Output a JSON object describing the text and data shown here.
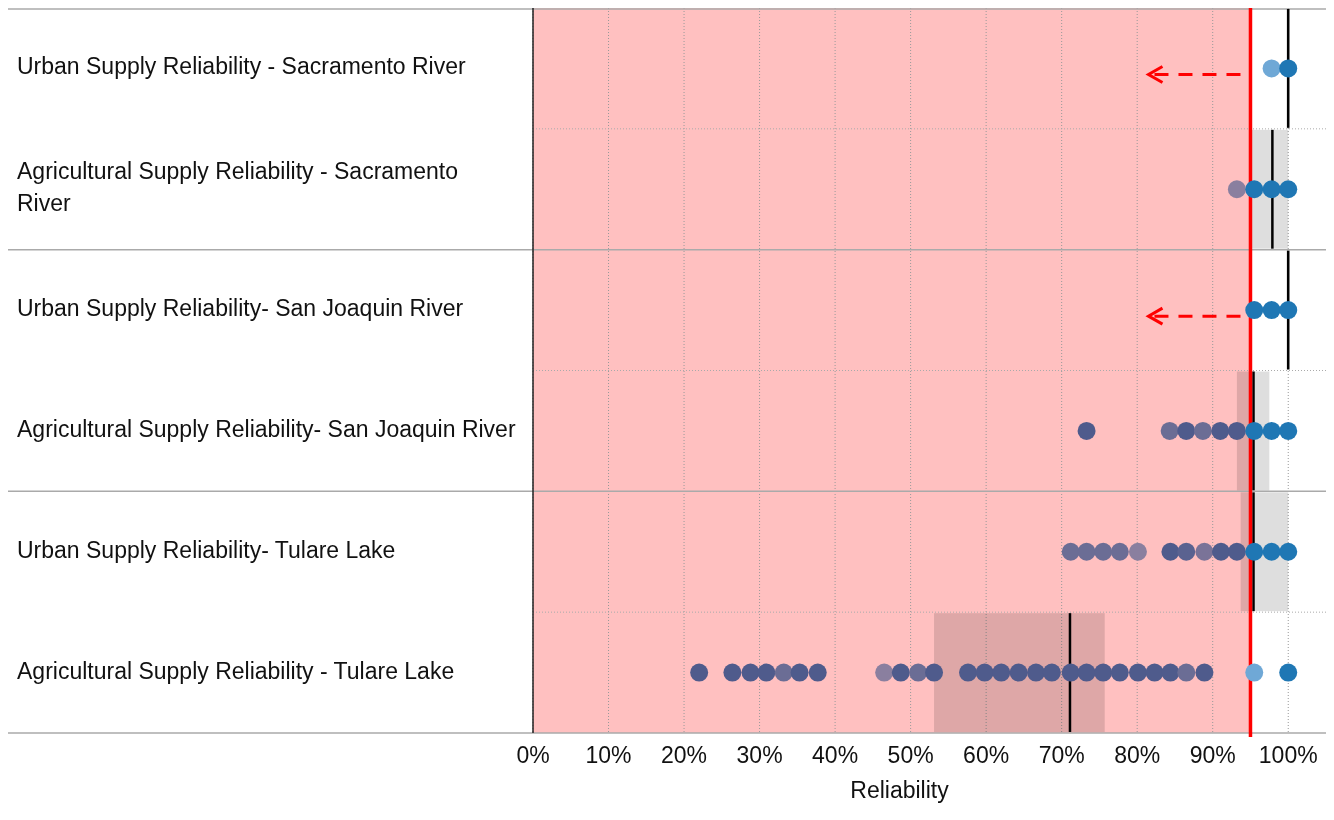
{
  "chart_data": {
    "type": "box",
    "orientation": "horizontal",
    "xlabel": "Reliability",
    "categories": [
      "Urban Supply Reliability - Sacramento River",
      "Agricultural Supply Reliability - Sacramento River",
      "Urban Supply Reliability- San Joaquin River",
      "Agricultural Supply Reliability- San Joaquin River",
      "Urban Supply Reliability- Tulare Lake",
      "Agricultural Supply Reliability - Tulare Lake"
    ],
    "boxes": [
      {
        "low": 100,
        "q1": 100,
        "median": 100,
        "q3": 100,
        "high": 100
      },
      {
        "low": 94.9,
        "q1": 94.9,
        "median": 97.9,
        "q3": 100,
        "high": 100
      },
      {
        "low": 100,
        "q1": 100,
        "median": 100,
        "q3": 100,
        "high": 100
      },
      {
        "low": 93.2,
        "q1": 93.2,
        "median": 95.4,
        "q3": 97.5,
        "high": 97.5
      },
      {
        "low": 93.7,
        "q1": 93.7,
        "median": 95.4,
        "q3": 100,
        "high": 100
      },
      {
        "low": 53.1,
        "q1": 53.1,
        "median": 71.1,
        "q3": 75.7,
        "high": 75.7
      }
    ],
    "series": [
      {
        "type": "scatter",
        "x": [
          "Urban Supply Reliability - Sacramento River",
          "Urban Supply Reliability - Sacramento River"
        ],
        "values": [
          97.8,
          100
        ],
        "colors": [
          "#6fa8d6",
          "#1f77b4"
        ]
      },
      {
        "type": "scatter",
        "x": [
          "Agricultural Supply Reliability - Sacramento River",
          "Agricultural Supply Reliability - Sacramento River",
          "Agricultural Supply Reliability - Sacramento River",
          "Agricultural Supply Reliability - Sacramento River"
        ],
        "values": [
          93.2,
          95.5,
          97.8,
          100
        ],
        "colors": [
          "#8a7f9f",
          "#1f77b4",
          "#1f77b4",
          "#1f77b4"
        ]
      },
      {
        "type": "scatter",
        "x": [
          "Urban Supply Reliability- San Joaquin River",
          "Urban Supply Reliability- San Joaquin River",
          "Urban Supply Reliability- San Joaquin River"
        ],
        "values": [
          95.5,
          97.8,
          100
        ],
        "colors": [
          "#1f77b4",
          "#1f77b4",
          "#1f77b4"
        ]
      },
      {
        "type": "scatter",
        "x": [
          "Agricultural Supply Reliability- San Joaquin River",
          "Agricultural Supply Reliability- San Joaquin River",
          "Agricultural Supply Reliability- San Joaquin River",
          "Agricultural Supply Reliability- San Joaquin River",
          "Agricultural Supply Reliability- San Joaquin River",
          "Agricultural Supply Reliability- San Joaquin River",
          "Agricultural Supply Reliability- San Joaquin River",
          "Agricultural Supply Reliability- San Joaquin River",
          "Agricultural Supply Reliability- San Joaquin River"
        ],
        "values": [
          73.3,
          84.3,
          86.5,
          88.7,
          91.0,
          93.2,
          95.5,
          97.8,
          100
        ],
        "colors": [
          "#4f5b8c",
          "#6b6d95",
          "#4f5b8c",
          "#6b6d95",
          "#4f5b8c",
          "#4f5b8c",
          "#1f77b4",
          "#1f77b4",
          "#1f77b4"
        ]
      },
      {
        "type": "scatter",
        "x": [
          "Urban Supply Reliability- Tulare Lake",
          "Urban Supply Reliability- Tulare Lake",
          "Urban Supply Reliability- Tulare Lake",
          "Urban Supply Reliability- Tulare Lake",
          "Urban Supply Reliability- Tulare Lake",
          "Urban Supply Reliability- Tulare Lake",
          "Urban Supply Reliability- Tulare Lake",
          "Urban Supply Reliability- Tulare Lake",
          "Urban Supply Reliability- Tulare Lake",
          "Urban Supply Reliability- Tulare Lake",
          "Urban Supply Reliability- Tulare Lake",
          "Urban Supply Reliability- Tulare Lake",
          "Urban Supply Reliability- Tulare Lake"
        ],
        "values": [
          71.2,
          73.3,
          75.5,
          77.7,
          80.1,
          84.4,
          86.5,
          88.9,
          91.1,
          93.2,
          95.5,
          97.8,
          100
        ],
        "colors": [
          "#6b6d95",
          "#6b6d95",
          "#6b6d95",
          "#6b6d95",
          "#8a7f9f",
          "#4f5b8c",
          "#5a6290",
          "#7a7398",
          "#4f5b8c",
          "#4f5b8c",
          "#1f77b4",
          "#1f77b4",
          "#1f77b4"
        ]
      },
      {
        "type": "scatter",
        "x": [
          "Agricultural Supply Reliability - Tulare Lake",
          "Agricultural Supply Reliability - Tulare Lake",
          "Agricultural Supply Reliability - Tulare Lake",
          "Agricultural Supply Reliability - Tulare Lake",
          "Agricultural Supply Reliability - Tulare Lake",
          "Agricultural Supply Reliability - Tulare Lake",
          "Agricultural Supply Reliability - Tulare Lake",
          "Agricultural Supply Reliability - Tulare Lake",
          "Agricultural Supply Reliability - Tulare Lake",
          "Agricultural Supply Reliability - Tulare Lake",
          "Agricultural Supply Reliability - Tulare Lake",
          "Agricultural Supply Reliability - Tulare Lake",
          "Agricultural Supply Reliability - Tulare Lake",
          "Agricultural Supply Reliability - Tulare Lake",
          "Agricultural Supply Reliability - Tulare Lake",
          "Agricultural Supply Reliability - Tulare Lake",
          "Agricultural Supply Reliability - Tulare Lake",
          "Agricultural Supply Reliability - Tulare Lake",
          "Agricultural Supply Reliability - Tulare Lake",
          "Agricultural Supply Reliability - Tulare Lake",
          "Agricultural Supply Reliability - Tulare Lake",
          "Agricultural Supply Reliability - Tulare Lake",
          "Agricultural Supply Reliability - Tulare Lake",
          "Agricultural Supply Reliability - Tulare Lake",
          "Agricultural Supply Reliability - Tulare Lake",
          "Agricultural Supply Reliability - Tulare Lake",
          "Agricultural Supply Reliability - Tulare Lake",
          "Agricultural Supply Reliability - Tulare Lake"
        ],
        "values": [
          22.0,
          26.4,
          28.8,
          30.9,
          33.2,
          35.3,
          37.7,
          46.5,
          48.7,
          51.0,
          53.1,
          57.6,
          59.8,
          62.0,
          64.3,
          66.6,
          68.7,
          71.2,
          73.3,
          75.5,
          77.7,
          80.1,
          82.3,
          84.4,
          86.5,
          88.9,
          95.5,
          100
        ],
        "colors": [
          "#4f5b8c",
          "#4f5b8c",
          "#4f5b8c",
          "#4f5b8c",
          "#6b6d95",
          "#4f5b8c",
          "#4f5b8c",
          "#8a7f9f",
          "#4f5b8c",
          "#6b6d95",
          "#4f5b8c",
          "#4f5b8c",
          "#4f5b8c",
          "#4f5b8c",
          "#4f5b8c",
          "#4f5b8c",
          "#4f5b8c",
          "#4f5b8c",
          "#4f5b8c",
          "#4f5b8c",
          "#4f5b8c",
          "#4f5b8c",
          "#4f5b8c",
          "#4f5b8c",
          "#6b6d95",
          "#4f5b8c",
          "#6fa8d6",
          "#1f77b4"
        ]
      }
    ],
    "xlim": [
      0,
      105
    ],
    "xticks": [
      {
        "value": 0,
        "label": "0%"
      },
      {
        "value": 10,
        "label": "10%"
      },
      {
        "value": 20,
        "label": "20%"
      },
      {
        "value": 30,
        "label": "30%"
      },
      {
        "value": 40,
        "label": "40%"
      },
      {
        "value": 50,
        "label": "50%"
      },
      {
        "value": 60,
        "label": "60%"
      },
      {
        "value": 70,
        "label": "70%"
      },
      {
        "value": 80,
        "label": "80%"
      },
      {
        "value": 90,
        "label": "90%"
      },
      {
        "value": 100,
        "label": "100%"
      }
    ],
    "bands": [
      {
        "axis": "x",
        "from": 0,
        "to": 95,
        "color": "#ffc0c0"
      }
    ],
    "ref_lines": [
      {
        "axis": "x",
        "value": 95,
        "color": "#ff0000"
      }
    ],
    "grid": true,
    "marker": "circle"
  }
}
